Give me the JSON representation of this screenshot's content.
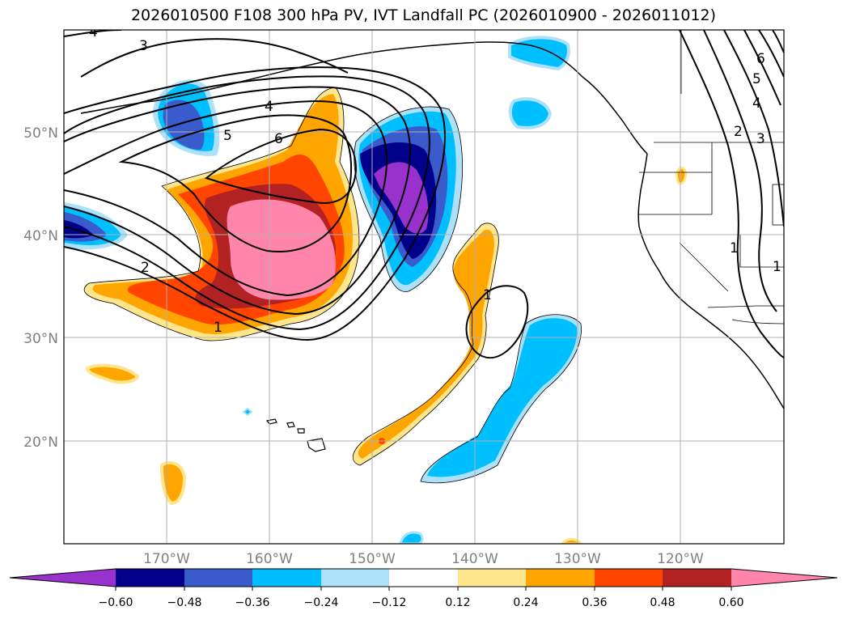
{
  "title": "2026010500 F108 300 hPa PV, IVT Landfall PC (2026010900 - 2026011012)",
  "map": {
    "projection": "PlateCarree",
    "lon_range": [
      -180,
      -110
    ],
    "lat_range": [
      10,
      60
    ],
    "lat_labels": [
      "20°N",
      "30°N",
      "40°N",
      "50°N"
    ],
    "lon_labels": [
      "170°W",
      "160°W",
      "150°W",
      "140°W",
      "130°W",
      "120°W"
    ],
    "gridlines": true
  },
  "shading": {
    "field": "IVT Landfall PC",
    "levels": [
      "−0.60",
      "−0.48",
      "−0.36",
      "−0.24",
      "−0.12",
      "0.12",
      "0.24",
      "0.36",
      "0.48",
      "0.60"
    ],
    "colors": [
      "#9932CC",
      "#00008B",
      "#3A5BCC",
      "#00BFFF",
      "#ADE1FA",
      "#FFFFFF",
      "#FFE68C",
      "#FFA500",
      "#FF4500",
      "#B22222",
      "#FF85AA"
    ],
    "extend": "both"
  },
  "contours": {
    "field": "300 hPa PV",
    "color": "#000000",
    "labels": [
      "1",
      "1",
      "2",
      "3",
      "4",
      "5",
      "6",
      "1",
      "2",
      "3",
      "4",
      "5",
      "6",
      "4",
      "1"
    ]
  }
}
